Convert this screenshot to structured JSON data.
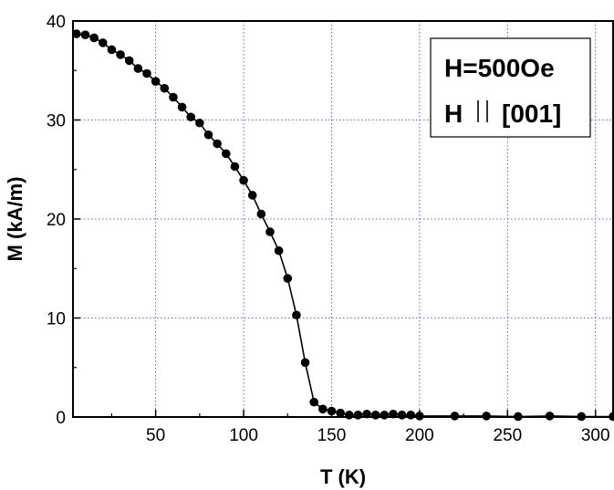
{
  "chart_data": {
    "type": "line",
    "title": "",
    "xlabel": "T (K)",
    "ylabel": "M (kA/m)",
    "xlim": [
      3,
      310
    ],
    "ylim": [
      0,
      40
    ],
    "xticks": [
      50,
      100,
      150,
      200,
      250,
      300
    ],
    "xtick_labels": [
      "50",
      "100",
      "150",
      "200",
      "250",
      "300"
    ],
    "yticks": [
      0,
      10,
      20,
      30,
      40
    ],
    "ytick_labels": [
      "0",
      "10",
      "20",
      "30",
      "40"
    ],
    "grid": true,
    "annotation": {
      "lines": [
        "H=500Oe",
        "H",
        "[001]"
      ],
      "placement": "top-right",
      "parallel_symbol": true
    },
    "series": [
      {
        "marker": "circle",
        "color": "#000000",
        "x": [
          5,
          10,
          15,
          20,
          25,
          30,
          35,
          40,
          45,
          50,
          55,
          60,
          65,
          70,
          75,
          80,
          85,
          90,
          95,
          100,
          105,
          110,
          115,
          120,
          125,
          130,
          135,
          140,
          145,
          150,
          155,
          160,
          165,
          170,
          175,
          180,
          185,
          190,
          195,
          200,
          220,
          238,
          256,
          274,
          292,
          310
        ],
        "y": [
          38.7,
          38.6,
          38.3,
          37.8,
          37.1,
          36.6,
          36.0,
          35.2,
          34.7,
          33.9,
          33.2,
          32.3,
          31.3,
          30.3,
          29.7,
          28.5,
          27.6,
          26.6,
          25.3,
          23.9,
          22.4,
          20.5,
          18.7,
          16.8,
          14.0,
          10.3,
          5.5,
          1.5,
          0.8,
          0.6,
          0.4,
          0.2,
          0.2,
          0.3,
          0.2,
          0.2,
          0.3,
          0.2,
          0.2,
          0.1,
          0.1,
          0.1,
          0.05,
          0.1,
          0.05,
          0.05
        ]
      }
    ]
  }
}
